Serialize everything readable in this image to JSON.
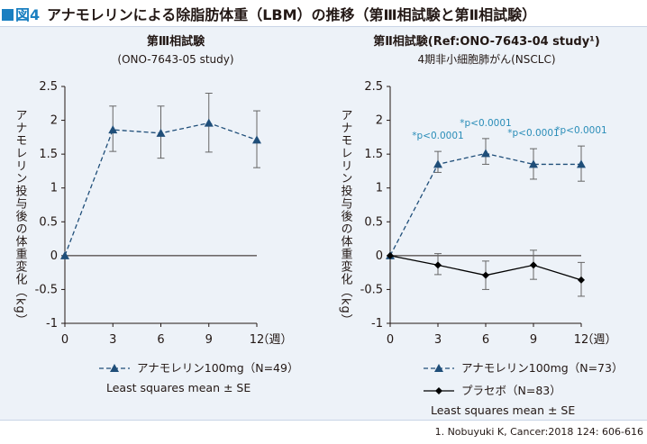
{
  "figure": {
    "tag": "図4",
    "title": "アナモレリンによる除脂肪体重（LBM）の推移（第Ⅲ相試験と第Ⅱ相試験）"
  },
  "footnote": "1. Nobuyuki K, Cancer:2018 124: 606-616",
  "chart_data": [
    {
      "type": "line",
      "title": "第Ⅲ相試験",
      "subtitle": "(ONO-7643-05 study)",
      "xlabel": "（週）",
      "ylabel": "アナモレリン投与後の体重変化（kg）",
      "x": [
        0,
        3,
        6,
        9,
        12
      ],
      "xticks": [
        "0",
        "3",
        "6",
        "9",
        "12"
      ],
      "yticks": [
        "2.5",
        "2",
        "1.5",
        "1",
        "0.5",
        "0",
        "-0.5",
        "-1"
      ],
      "ylim": [
        -1,
        2.5
      ],
      "series": [
        {
          "name": "アナモレリン100mg（N=49）",
          "color": "#1f4e79",
          "marker": "triangle",
          "line": "dashed",
          "values": [
            0,
            1.86,
            1.81,
            1.96,
            1.71
          ],
          "err_upper": [
            0,
            2.21,
            2.21,
            2.4,
            2.14
          ],
          "err_lower": [
            0,
            1.54,
            1.44,
            1.53,
            1.3
          ]
        }
      ],
      "legend_note": "Least squares mean ± SE",
      "annotations": []
    },
    {
      "type": "line",
      "title": "第Ⅱ相試験(Ref:ONO-7643-04 study¹)",
      "subtitle": "4期非小細胞肺がん(NSCLC)",
      "xlabel": "（週）",
      "ylabel": "アナモレリン投与後の体重変化（kg）",
      "x": [
        0,
        3,
        6,
        9,
        12
      ],
      "xticks": [
        "0",
        "3",
        "6",
        "9",
        "12"
      ],
      "yticks": [
        "2.5",
        "2",
        "1.5",
        "1",
        "0.5",
        "0",
        "-0.5",
        "-1"
      ],
      "ylim": [
        -1,
        2.5
      ],
      "series": [
        {
          "name": "アナモレリン100mg（N=73）",
          "color": "#1f4e79",
          "marker": "triangle",
          "line": "dashed",
          "values": [
            0,
            1.35,
            1.51,
            1.35,
            1.35
          ],
          "err_upper": [
            0,
            1.54,
            1.73,
            1.58,
            1.62
          ],
          "err_lower": [
            0,
            1.23,
            1.35,
            1.13,
            1.1
          ]
        },
        {
          "name": "プラセボ（N=83）",
          "color": "#000000",
          "marker": "diamond",
          "line": "solid",
          "values": [
            0,
            -0.14,
            -0.29,
            -0.14,
            -0.36
          ],
          "err_upper": [
            0,
            0.03,
            -0.08,
            0.08,
            -0.1
          ],
          "err_lower": [
            0,
            -0.28,
            -0.5,
            -0.35,
            -0.6
          ]
        }
      ],
      "legend_note": "Least squares mean ± SE",
      "annotations": [
        "",
        "*p<0.0001",
        "*p<0.0001",
        "*p<0.0001",
        "*p<0.0001"
      ],
      "annotation_color": "#2a8db8"
    }
  ]
}
